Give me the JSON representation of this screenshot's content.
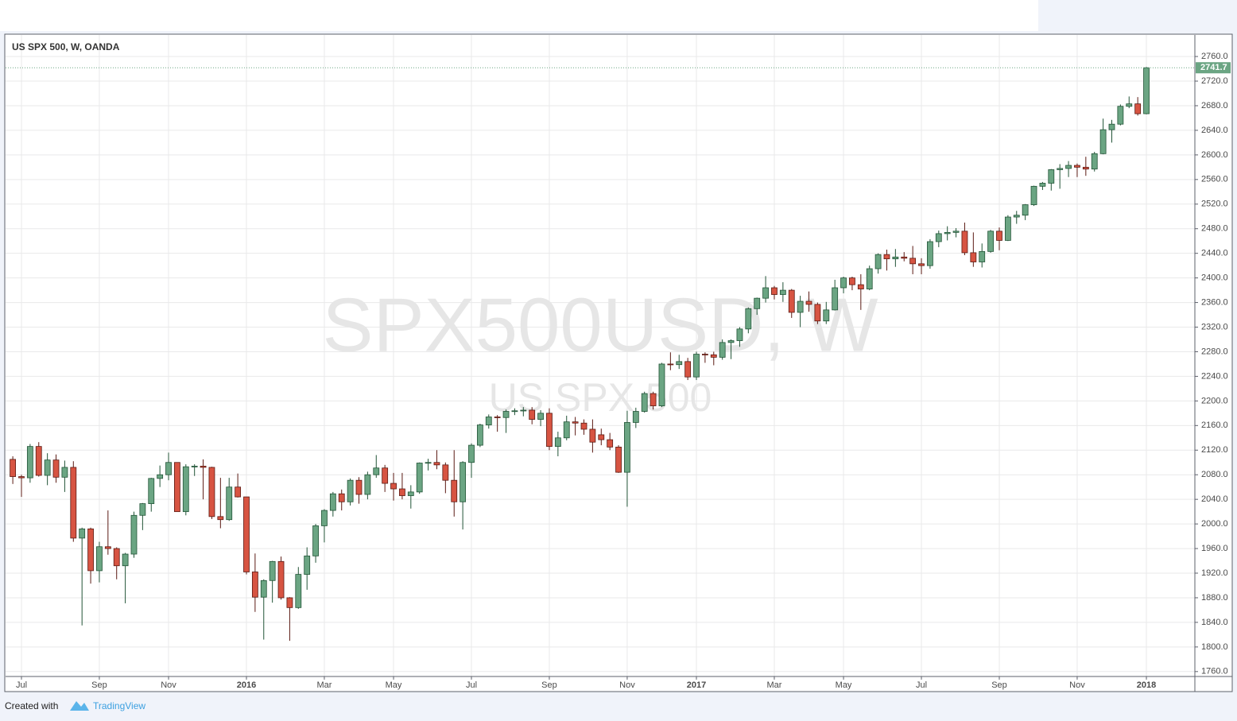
{
  "chart_data": {
    "type": "candlestick",
    "title": "US SPX 500, W, OANDA",
    "watermark": "SPX500USD, W",
    "watermark_subtitle": "US SPX 500",
    "footer": {
      "created_with": "Created with",
      "brand": "TradingView"
    },
    "up_color": "#6ba583",
    "up_border": "#225437",
    "down_color": "#d75442",
    "down_border": "#5b1a13",
    "grid": true,
    "categories": [
      null,
      "Jul",
      null,
      null,
      null,
      null,
      null,
      null,
      null,
      null,
      "Sep",
      null,
      null,
      null,
      null,
      null,
      null,
      null,
      "Nov",
      null,
      null,
      null,
      null,
      null,
      null,
      null,
      null,
      "2016",
      null,
      null,
      null,
      null,
      null,
      null,
      null,
      null,
      "Mar",
      null,
      null,
      null,
      null,
      null,
      null,
      null,
      "May",
      null,
      null,
      null,
      null,
      null,
      null,
      null,
      null,
      "Jul",
      null,
      null,
      null,
      null,
      null,
      null,
      null,
      null,
      "Sep",
      null,
      null,
      null,
      null,
      null,
      null,
      null,
      null,
      "Nov",
      null,
      null,
      null,
      null,
      null,
      null,
      null,
      "2017",
      null,
      null,
      null,
      null,
      null,
      null,
      null,
      null,
      "Mar",
      null,
      null,
      null,
      null,
      null,
      null,
      null,
      "May",
      null,
      null,
      null,
      null,
      null,
      null,
      null,
      null,
      "Jul",
      null,
      null,
      null,
      null,
      null,
      null,
      null,
      null,
      "Sep",
      null,
      null,
      null,
      null,
      null,
      null,
      null,
      null,
      "Nov",
      null,
      null,
      null,
      null,
      null,
      null,
      null,
      "2018"
    ],
    "open": [
      2105,
      2077,
      2075,
      2126,
      2079,
      2104,
      2076,
      2092,
      1977,
      1992,
      1924,
      1963,
      1960,
      1932,
      1951,
      2014,
      2033,
      2074,
      2080,
      2100,
      2020,
      2093,
      2094,
      2092,
      2012,
      2007,
      2060,
      2044,
      1922,
      1881,
      1908,
      1939,
      1880,
      1864,
      1918,
      1948,
      1997,
      2022,
      2049,
      2036,
      2071,
      2048,
      2080,
      2091,
      2066,
      2057,
      2046,
      2052,
      2099,
      2100,
      2096,
      2071,
      2036,
      2100,
      2128,
      2161,
      2174,
      2173,
      2183,
      2184,
      2185,
      2170,
      2180,
      2126,
      2140,
      2166,
      2164,
      2154,
      2145,
      2137,
      2125,
      2084,
      2165,
      2183,
      2212,
      2192,
      2260,
      2259,
      2264,
      2239,
      2276,
      2275,
      2271,
      2295,
      2298,
      2317,
      2350,
      2367,
      2384,
      2373,
      2380,
      2344,
      2362,
      2357,
      2330,
      2348,
      2384,
      2400,
      2389,
      2382,
      2415,
      2438,
      2431,
      2434,
      2432,
      2423,
      2420,
      2459,
      2472,
      2474,
      2476,
      2441,
      2426,
      2443,
      2476,
      2461,
      2499,
      2502,
      2519,
      2549,
      2554,
      2576,
      2578,
      2583,
      2580,
      2577,
      2602,
      2641,
      2650,
      2679,
      2683,
      2667
    ],
    "high": [
      2110,
      2080,
      2130,
      2133,
      2115,
      2113,
      2103,
      2102,
      1994,
      1994,
      1971,
      2022,
      1962,
      1953,
      2020,
      2034,
      2075,
      2095,
      2116,
      2100,
      2097,
      2097,
      2105,
      2093,
      2075,
      2075,
      2082,
      2044,
      1952,
      1910,
      1940,
      1947,
      1881,
      1930,
      1962,
      2000,
      2024,
      2052,
      2056,
      2074,
      2076,
      2085,
      2112,
      2096,
      2083,
      2083,
      2063,
      2100,
      2106,
      2120,
      2100,
      2120,
      2102,
      2131,
      2163,
      2178,
      2177,
      2186,
      2188,
      2190,
      2190,
      2185,
      2188,
      2150,
      2176,
      2174,
      2170,
      2170,
      2155,
      2148,
      2128,
      2184,
      2189,
      2215,
      2215,
      2262,
      2279,
      2275,
      2270,
      2280,
      2279,
      2280,
      2300,
      2300,
      2320,
      2352,
      2368,
      2403,
      2387,
      2393,
      2382,
      2371,
      2378,
      2360,
      2361,
      2397,
      2402,
      2402,
      2406,
      2420,
      2440,
      2446,
      2447,
      2442,
      2452,
      2432,
      2463,
      2477,
      2484,
      2481,
      2490,
      2474,
      2456,
      2478,
      2482,
      2502,
      2509,
      2520,
      2550,
      2556,
      2577,
      2585,
      2590,
      2586,
      2597,
      2605,
      2659,
      2657,
      2682,
      2695,
      2694,
      2743
    ],
    "low": [
      2065,
      2044,
      2067,
      2077,
      2063,
      2067,
      2052,
      1971,
      1835,
      1903,
      1905,
      1950,
      1910,
      1871,
      1945,
      1990,
      2020,
      2060,
      2071,
      2020,
      2014,
      2078,
      2040,
      2008,
      1993,
      2005,
      2043,
      1918,
      1857,
      1812,
      1872,
      1877,
      1810,
      1862,
      1893,
      1937,
      1970,
      2012,
      2022,
      2030,
      2033,
      2040,
      2075,
      2052,
      2038,
      2040,
      2025,
      2049,
      2087,
      2089,
      2050,
      2012,
      1991,
      2075,
      2125,
      2155,
      2150,
      2148,
      2177,
      2175,
      2162,
      2159,
      2120,
      2110,
      2136,
      2144,
      2145,
      2116,
      2128,
      2120,
      2083,
      2028,
      2156,
      2181,
      2186,
      2190,
      2250,
      2252,
      2234,
      2234,
      2262,
      2258,
      2267,
      2268,
      2288,
      2310,
      2340,
      2360,
      2365,
      2361,
      2335,
      2320,
      2345,
      2325,
      2325,
      2347,
      2375,
      2380,
      2348,
      2380,
      2407,
      2412,
      2418,
      2427,
      2406,
      2406,
      2415,
      2450,
      2461,
      2466,
      2437,
      2418,
      2417,
      2441,
      2445,
      2460,
      2488,
      2494,
      2517,
      2543,
      2542,
      2545,
      2564,
      2564,
      2566,
      2573,
      2601,
      2620,
      2648,
      2676,
      2664,
      2666
    ],
    "close": [
      2077,
      2075,
      2126,
      2079,
      2104,
      2076,
      2092,
      1977,
      1992,
      1924,
      1963,
      1960,
      1932,
      1951,
      2014,
      2033,
      2074,
      2080,
      2100,
      2020,
      2093,
      2094,
      2092,
      2012,
      2007,
      2060,
      2044,
      1922,
      1881,
      1908,
      1939,
      1880,
      1864,
      1918,
      1948,
      1997,
      2022,
      2049,
      2036,
      2071,
      2048,
      2080,
      2091,
      2066,
      2057,
      2046,
      2052,
      2099,
      2100,
      2096,
      2071,
      2036,
      2100,
      2128,
      2161,
      2174,
      2173,
      2183,
      2184,
      2185,
      2170,
      2180,
      2126,
      2140,
      2166,
      2164,
      2154,
      2133,
      2137,
      2125,
      2084,
      2165,
      2183,
      2212,
      2192,
      2260,
      2259,
      2264,
      2239,
      2276,
      2275,
      2271,
      2295,
      2298,
      2317,
      2350,
      2367,
      2384,
      2373,
      2380,
      2344,
      2362,
      2357,
      2330,
      2348,
      2384,
      2400,
      2389,
      2382,
      2415,
      2438,
      2431,
      2434,
      2432,
      2423,
      2420,
      2459,
      2472,
      2474,
      2476,
      2441,
      2426,
      2443,
      2476,
      2461,
      2499,
      2502,
      2519,
      2549,
      2554,
      2576,
      2578,
      2583,
      2580,
      2577,
      2602,
      2641,
      2650,
      2679,
      2683,
      2667,
      2741.7
    ],
    "ylim": [
      1752,
      2795
    ],
    "yticks": [
      {
        "value": 1760,
        "label": "1760.0"
      },
      {
        "value": 1800,
        "label": "1800.0"
      },
      {
        "value": 1840,
        "label": "1840.0"
      },
      {
        "value": 1880,
        "label": "1880.0"
      },
      {
        "value": 1920,
        "label": "1920.0"
      },
      {
        "value": 1960,
        "label": "1960.0"
      },
      {
        "value": 2000,
        "label": "2000.0"
      },
      {
        "value": 2040,
        "label": "2040.0"
      },
      {
        "value": 2080,
        "label": "2080.0"
      },
      {
        "value": 2120,
        "label": "2120.0"
      },
      {
        "value": 2160,
        "label": "2160.0"
      },
      {
        "value": 2200,
        "label": "2200.0"
      },
      {
        "value": 2240,
        "label": "2240.0"
      },
      {
        "value": 2280,
        "label": "2280.0"
      },
      {
        "value": 2320,
        "label": "2320.0"
      },
      {
        "value": 2360,
        "label": "2360.0"
      },
      {
        "value": 2400,
        "label": "2400.0"
      },
      {
        "value": 2440,
        "label": "2440.0"
      },
      {
        "value": 2480,
        "label": "2480.0"
      },
      {
        "value": 2520,
        "label": "2520.0"
      },
      {
        "value": 2560,
        "label": "2560.0"
      },
      {
        "value": 2600,
        "label": "2600.0"
      },
      {
        "value": 2640,
        "label": "2640.0"
      },
      {
        "value": 2680,
        "label": "2680.0"
      },
      {
        "value": 2720,
        "label": "2720.0"
      },
      {
        "value": 2760,
        "label": "2760.0"
      }
    ]
  }
}
